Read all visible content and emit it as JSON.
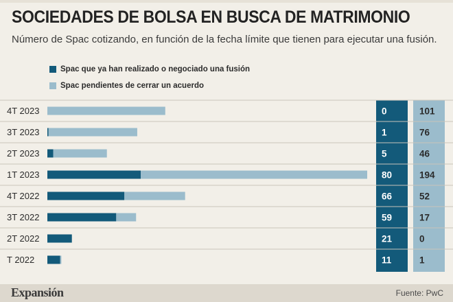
{
  "header": {
    "title": "SOCIEDADES DE BOLSA EN BUSCA DE MATRIMONIO",
    "subtitle": "Número de Spac cotizando, en función de la fecha límite que tienen para ejecutar una fusión."
  },
  "colors": {
    "background": "#f2efe8",
    "completed": "#135a7a",
    "pending": "#9bbccc",
    "gridline": "#c9c4ba",
    "label_text": "#ffffff",
    "pending_text": "#2b2b2b"
  },
  "legend": {
    "items": [
      {
        "label": "Spac que ya han realizado o negociado una fusión",
        "color": "#135a7a"
      },
      {
        "label": "Spac pendientes de cerrar un acuerdo",
        "color": "#9bbccc"
      }
    ]
  },
  "chart_data": {
    "type": "bar",
    "orientation": "horizontal",
    "stacked": true,
    "categories": [
      "4T 2023",
      "3T 2023",
      "2T 2023",
      "1T 2023",
      "4T 2022",
      "3T 2022",
      "2T 2022",
      "T 2022"
    ],
    "series": [
      {
        "name": "Spac que ya han realizado o negociado una fusión",
        "values": [
          0,
          1,
          5,
          80,
          66,
          59,
          21,
          11
        ]
      },
      {
        "name": "Spac pendientes de cerrar un acuerdo",
        "values": [
          101,
          76,
          46,
          194,
          52,
          17,
          0,
          1
        ]
      }
    ],
    "xlim": [
      0,
      274
    ],
    "value_labels": {
      "completed": [
        "0",
        "1",
        "5",
        "80",
        "66",
        "59",
        "21",
        "11"
      ],
      "pending": [
        "101",
        "76",
        "46",
        "194",
        "52",
        "17",
        "0",
        "1"
      ]
    },
    "grid": "horizontal separators",
    "legend_position": "top-left"
  },
  "footer": {
    "brand": "Expansión",
    "source": "Fuente: PwC"
  }
}
